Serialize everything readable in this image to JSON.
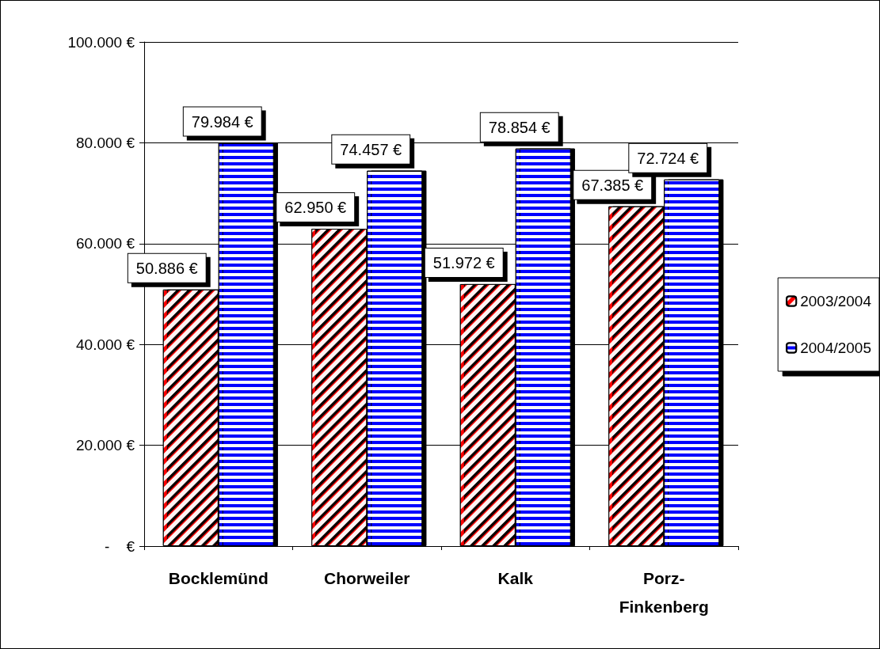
{
  "chart_data": {
    "type": "bar",
    "categories": [
      "Bocklemünd",
      "Chorweiler",
      "Kalk",
      "Porz-Finkenberg"
    ],
    "series": [
      {
        "name": "2003/2004",
        "color": "#ff0000",
        "values": [
          50886,
          62950,
          51972,
          67385
        ],
        "value_labels": [
          "50.886 €",
          "62.950 €",
          "51.972 €",
          "67.385 €"
        ]
      },
      {
        "name": "2004/2005",
        "color": "#0000ff",
        "values": [
          79984,
          74457,
          78854,
          72724
        ],
        "value_labels": [
          "79.984 €",
          "74.457 €",
          "78.854 €",
          "72.724 €"
        ]
      }
    ],
    "ylim": [
      0,
      100000
    ],
    "yticks": [
      {
        "value": 0,
        "label": "-    €"
      },
      {
        "value": 20000,
        "label": "20.000 €"
      },
      {
        "value": 40000,
        "label": "40.000 €"
      },
      {
        "value": 60000,
        "label": "60.000 €"
      },
      {
        "value": 80000,
        "label": "80.000 €"
      },
      {
        "value": 100000,
        "label": "100.000 €"
      }
    ],
    "grid": "y",
    "legend": "right"
  }
}
